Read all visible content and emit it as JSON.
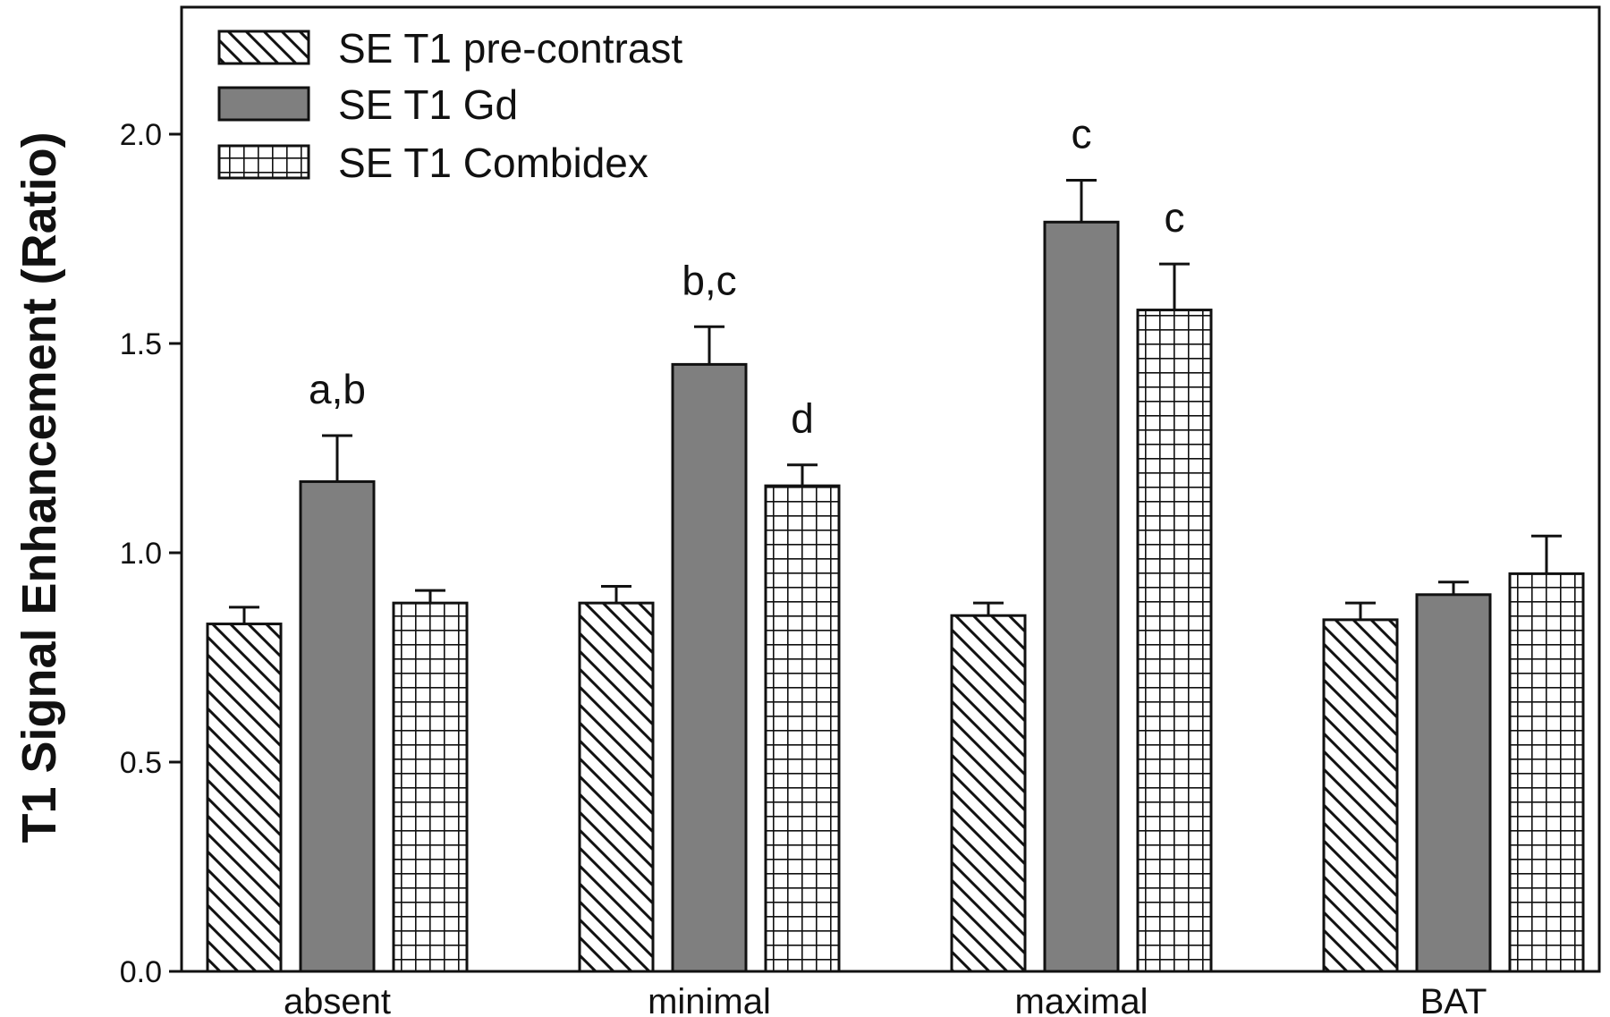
{
  "chart_data": {
    "type": "bar",
    "title": "",
    "xlabel": "",
    "ylabel": "T1 Signal Enhancement (Ratio)",
    "ylim": [
      0,
      2.25
    ],
    "yticks": [
      "0.0",
      "0.5",
      "1.0",
      "1.5",
      "2.0"
    ],
    "ytick_values": [
      0,
      0.5,
      1.0,
      1.5,
      2.0
    ],
    "categories": [
      "absent",
      "minimal",
      "maximal",
      "BAT"
    ],
    "legend_position": "top-left",
    "grid": false,
    "series": [
      {
        "name": "SE T1 pre-contrast",
        "pattern": "diagonal-hatch",
        "values": [
          0.83,
          0.88,
          0.85,
          0.84
        ],
        "errors": [
          0.04,
          0.04,
          0.03,
          0.04
        ],
        "annotations": [
          "",
          "",
          "",
          ""
        ]
      },
      {
        "name": "SE T1 Gd",
        "pattern": "solid-gray",
        "color": "#7f7f7f",
        "values": [
          1.17,
          1.45,
          1.79,
          0.9
        ],
        "errors": [
          0.11,
          0.09,
          0.1,
          0.03
        ],
        "annotations": [
          "a,b",
          "b,c",
          "c",
          ""
        ]
      },
      {
        "name": "SE T1 Combidex",
        "pattern": "grid-hatch",
        "values": [
          0.88,
          1.16,
          1.58,
          0.95
        ],
        "errors": [
          0.03,
          0.05,
          0.11,
          0.09
        ],
        "annotations": [
          "",
          "d",
          "c",
          ""
        ]
      }
    ]
  }
}
